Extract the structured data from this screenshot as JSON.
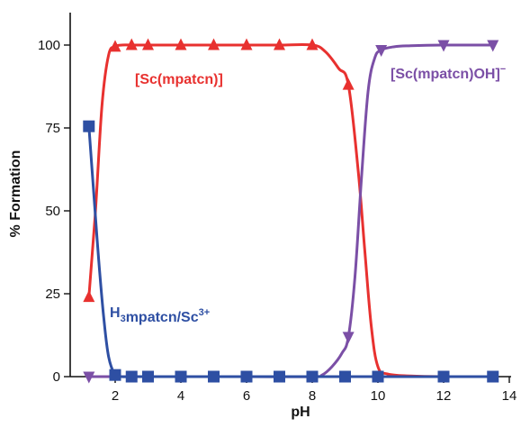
{
  "chart_data": {
    "type": "line",
    "title": "",
    "xlabel": "pH",
    "ylabel": "% Formation",
    "xlim": [
      1,
      14
    ],
    "ylim": [
      0,
      108
    ],
    "xticks": [
      2,
      4,
      6,
      8,
      10,
      12,
      14
    ],
    "yticks": [
      0,
      25,
      50,
      75,
      100
    ],
    "grid": false,
    "series": [
      {
        "name": "[Sc(mpatcn)]",
        "color": "#e8312f",
        "marker": "triangle-up",
        "label_parts": [
          {
            "text": "[Sc(mpatcn)]",
            "sup": false
          }
        ],
        "curve_x": [
          1.2,
          1.4,
          1.6,
          1.8,
          2.0,
          2.2,
          2.5,
          3,
          4,
          5,
          6,
          7,
          8,
          8.4,
          8.8,
          9.1,
          9.4,
          9.6,
          9.8,
          10.0,
          10.3,
          11,
          12,
          13.5
        ],
        "curve_y": [
          24,
          50,
          82,
          97,
          99.5,
          100,
          100,
          100,
          100,
          100,
          100,
          100,
          100,
          98,
          93,
          88,
          62,
          38,
          15,
          3,
          0.8,
          0.2,
          0,
          0
        ],
        "marker_x": [
          1.2,
          2.0,
          2.5,
          3,
          4,
          5,
          6,
          7,
          8,
          9.1
        ],
        "marker_y": [
          24,
          99.5,
          100,
          100,
          100,
          100,
          100,
          100,
          100,
          88
        ]
      },
      {
        "name": "[Sc(mpatcn)OH]",
        "color": "#7b4fa6",
        "marker": "triangle-down",
        "label_parts": [
          {
            "text": "[Sc(mpatcn)OH]",
            "sup": false
          },
          {
            "text": "−",
            "sup": true
          }
        ],
        "curve_x": [
          1.2,
          2,
          4,
          6,
          8,
          8.3,
          8.6,
          8.9,
          9.1,
          9.3,
          9.5,
          9.7,
          9.9,
          10.1,
          10.5,
          11,
          12,
          13.5
        ],
        "curve_y": [
          0,
          0,
          0,
          0,
          0,
          0.5,
          3,
          7,
          12,
          30,
          60,
          86,
          96,
          98.5,
          99.5,
          99.8,
          100,
          100
        ],
        "marker_x": [
          1.2,
          9.1,
          10.1,
          12,
          13.5
        ],
        "marker_y": [
          0,
          12,
          98.5,
          100,
          100
        ]
      },
      {
        "name": "H3mpatcn/Sc3+",
        "color": "#2e4fa3",
        "marker": "square",
        "label_parts": [
          {
            "text": "H",
            "sub": false
          },
          {
            "text": "3",
            "sub": true
          },
          {
            "text": "mpatcn/Sc",
            "sub": false
          },
          {
            "text": "3+",
            "sup": true
          }
        ],
        "curve_x": [
          1.2,
          1.35,
          1.5,
          1.65,
          1.8,
          2.0,
          2.2,
          2.5,
          3,
          4,
          5,
          6,
          7,
          8,
          9,
          10,
          11,
          12,
          13.5
        ],
        "curve_y": [
          75.5,
          55,
          35,
          18,
          6,
          0.5,
          0,
          0,
          0,
          0,
          0,
          0,
          0,
          0,
          0,
          0,
          0,
          0,
          0
        ],
        "marker_x": [
          1.2,
          2.0,
          2.5,
          3,
          4,
          5,
          6,
          7,
          8,
          9,
          10,
          12,
          13.5
        ],
        "marker_y": [
          75.5,
          0.5,
          0,
          0,
          0,
          0,
          0,
          0,
          0,
          0,
          0,
          0,
          0
        ]
      }
    ]
  }
}
